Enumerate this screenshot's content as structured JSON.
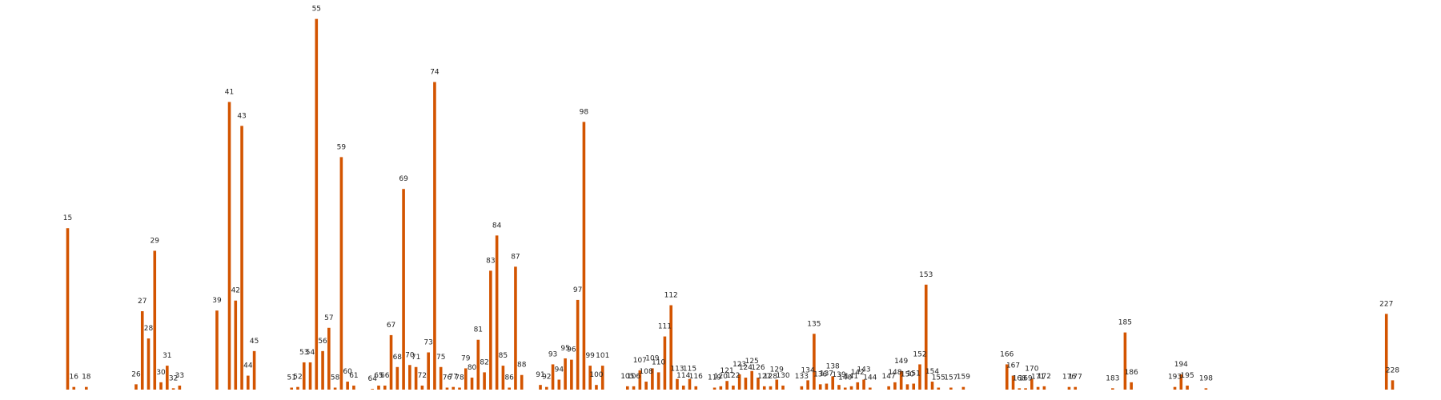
{
  "chart_data": {
    "type": "bar",
    "bar_color": "#d35400",
    "x_range": [
      10,
      234
    ],
    "ylim": [
      0,
      56
    ],
    "grid": false,
    "legend": "none",
    "bars": [
      {
        "x": 15,
        "v": 24.3
      },
      {
        "x": 16,
        "v": 0.4
      },
      {
        "x": 18,
        "v": 0.4
      },
      {
        "x": 26,
        "v": 0.8
      },
      {
        "x": 27,
        "v": 11.8
      },
      {
        "x": 28,
        "v": 7.7
      },
      {
        "x": 29,
        "v": 20.9
      },
      {
        "x": 30,
        "v": 1.1
      },
      {
        "x": 31,
        "v": 3.6
      },
      {
        "x": 32,
        "v": 0.2
      },
      {
        "x": 33,
        "v": 0.6
      },
      {
        "x": 39,
        "v": 11.9
      },
      {
        "x": 41,
        "v": 43.3
      },
      {
        "x": 42,
        "v": 13.4
      },
      {
        "x": 43,
        "v": 39.7
      },
      {
        "x": 44,
        "v": 2.1
      },
      {
        "x": 45,
        "v": 5.8
      },
      {
        "x": 51,
        "v": 0.3
      },
      {
        "x": 52,
        "v": 0.4
      },
      {
        "x": 53,
        "v": 4.1
      },
      {
        "x": 54,
        "v": 4.1
      },
      {
        "x": 55,
        "v": 55.8
      },
      {
        "x": 56,
        "v": 5.8
      },
      {
        "x": 57,
        "v": 9.3
      },
      {
        "x": 58,
        "v": 0.3
      },
      {
        "x": 59,
        "v": 35.0
      },
      {
        "x": 60,
        "v": 1.2
      },
      {
        "x": 61,
        "v": 0.6
      },
      {
        "x": 64,
        "v": 0.1
      },
      {
        "x": 65,
        "v": 0.6
      },
      {
        "x": 66,
        "v": 0.6
      },
      {
        "x": 67,
        "v": 8.2
      },
      {
        "x": 68,
        "v": 3.4
      },
      {
        "x": 69,
        "v": 30.2
      },
      {
        "x": 70,
        "v": 3.7
      },
      {
        "x": 71,
        "v": 3.4
      },
      {
        "x": 72,
        "v": 0.6
      },
      {
        "x": 73,
        "v": 5.6
      },
      {
        "x": 74,
        "v": 46.3
      },
      {
        "x": 75,
        "v": 3.4
      },
      {
        "x": 76,
        "v": 0.3
      },
      {
        "x": 77,
        "v": 0.4
      },
      {
        "x": 78,
        "v": 0.3
      },
      {
        "x": 79,
        "v": 3.2
      },
      {
        "x": 80,
        "v": 1.8
      },
      {
        "x": 81,
        "v": 7.5
      },
      {
        "x": 82,
        "v": 2.6
      },
      {
        "x": 83,
        "v": 17.9
      },
      {
        "x": 84,
        "v": 23.2
      },
      {
        "x": 85,
        "v": 3.6
      },
      {
        "x": 86,
        "v": 0.3
      },
      {
        "x": 87,
        "v": 18.5
      },
      {
        "x": 88,
        "v": 2.2
      },
      {
        "x": 91,
        "v": 0.7
      },
      {
        "x": 92,
        "v": 0.4
      },
      {
        "x": 93,
        "v": 3.8
      },
      {
        "x": 94,
        "v": 1.5
      },
      {
        "x": 95,
        "v": 4.7
      },
      {
        "x": 96,
        "v": 4.5
      },
      {
        "x": 97,
        "v": 13.5
      },
      {
        "x": 98,
        "v": 40.3
      },
      {
        "x": 99,
        "v": 3.6
      },
      {
        "x": 100,
        "v": 0.7
      },
      {
        "x": 101,
        "v": 3.6
      },
      {
        "x": 105,
        "v": 0.5
      },
      {
        "x": 106,
        "v": 0.5
      },
      {
        "x": 107,
        "v": 2.9
      },
      {
        "x": 108,
        "v": 1.2
      },
      {
        "x": 109,
        "v": 3.2
      },
      {
        "x": 110,
        "v": 2.6
      },
      {
        "x": 111,
        "v": 8.0
      },
      {
        "x": 112,
        "v": 12.7
      },
      {
        "x": 113,
        "v": 1.6
      },
      {
        "x": 114,
        "v": 0.6
      },
      {
        "x": 115,
        "v": 1.6
      },
      {
        "x": 116,
        "v": 0.5
      },
      {
        "x": 119,
        "v": 0.3
      },
      {
        "x": 120,
        "v": 0.5
      },
      {
        "x": 121,
        "v": 1.3
      },
      {
        "x": 122,
        "v": 0.6
      },
      {
        "x": 123,
        "v": 2.3
      },
      {
        "x": 124,
        "v": 1.8
      },
      {
        "x": 125,
        "v": 2.8
      },
      {
        "x": 126,
        "v": 1.8
      },
      {
        "x": 127,
        "v": 0.5
      },
      {
        "x": 128,
        "v": 0.5
      },
      {
        "x": 129,
        "v": 1.5
      },
      {
        "x": 130,
        "v": 0.6
      },
      {
        "x": 133,
        "v": 0.5
      },
      {
        "x": 134,
        "v": 1.4
      },
      {
        "x": 135,
        "v": 8.4
      },
      {
        "x": 136,
        "v": 0.8
      },
      {
        "x": 137,
        "v": 0.9
      },
      {
        "x": 138,
        "v": 2.0
      },
      {
        "x": 139,
        "v": 0.7
      },
      {
        "x": 140,
        "v": 0.3
      },
      {
        "x": 141,
        "v": 0.5
      },
      {
        "x": 142,
        "v": 1.1
      },
      {
        "x": 143,
        "v": 1.5
      },
      {
        "x": 144,
        "v": 0.3
      },
      {
        "x": 147,
        "v": 0.5
      },
      {
        "x": 148,
        "v": 1.1
      },
      {
        "x": 149,
        "v": 2.8
      },
      {
        "x": 150,
        "v": 0.8
      },
      {
        "x": 151,
        "v": 0.9
      },
      {
        "x": 152,
        "v": 3.8
      },
      {
        "x": 153,
        "v": 15.8
      },
      {
        "x": 154,
        "v": 1.2
      },
      {
        "x": 155,
        "v": 0.3
      },
      {
        "x": 157,
        "v": 0.3
      },
      {
        "x": 159,
        "v": 0.4
      },
      {
        "x": 166,
        "v": 3.8
      },
      {
        "x": 167,
        "v": 2.1
      },
      {
        "x": 168,
        "v": 0.2
      },
      {
        "x": 169,
        "v": 0.2
      },
      {
        "x": 170,
        "v": 1.6
      },
      {
        "x": 171,
        "v": 0.4
      },
      {
        "x": 172,
        "v": 0.5
      },
      {
        "x": 176,
        "v": 0.4
      },
      {
        "x": 177,
        "v": 0.4
      },
      {
        "x": 183,
        "v": 0.2
      },
      {
        "x": 185,
        "v": 8.6
      },
      {
        "x": 186,
        "v": 1.1
      },
      {
        "x": 193,
        "v": 0.4
      },
      {
        "x": 194,
        "v": 2.3
      },
      {
        "x": 195,
        "v": 0.6
      },
      {
        "x": 198,
        "v": 0.2
      },
      {
        "x": 227,
        "v": 11.4
      },
      {
        "x": 228,
        "v": 1.4
      }
    ]
  }
}
